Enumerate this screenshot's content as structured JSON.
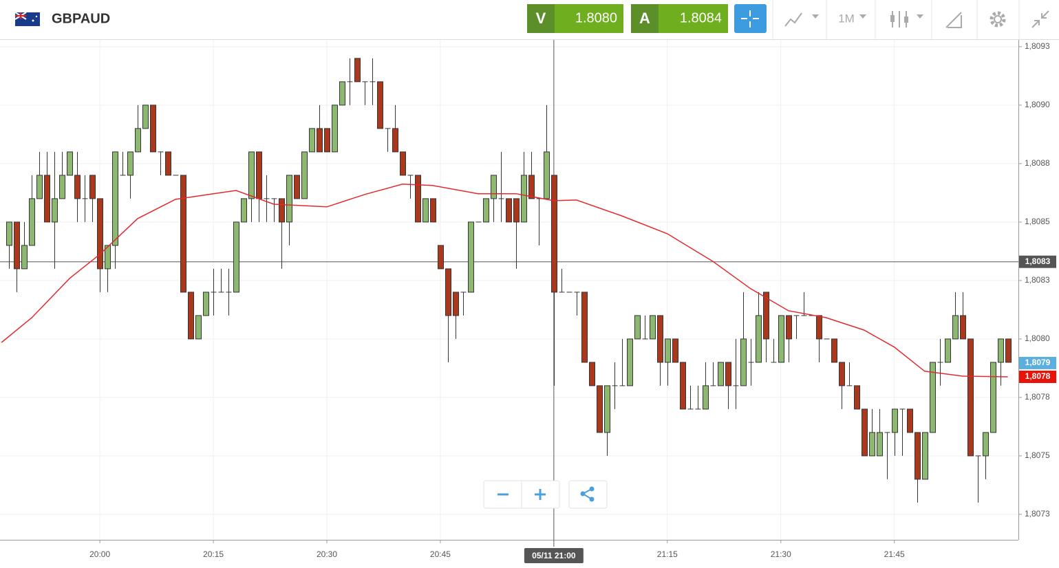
{
  "header": {
    "symbol": "GBPAUD",
    "bid_label": "V",
    "bid": "1.8080",
    "ask_label": "A",
    "ask": "1.8084",
    "timeframe": "1M"
  },
  "chart_data": {
    "type": "candlestick",
    "up_color": "#8cb870",
    "down_color": "#a9381c",
    "xlim": [
      1186.8,
      1321.4
    ],
    "ylim": [
      1.807141,
      1.809279
    ],
    "xticks": [
      {
        "value": 1200,
        "label": "20:00"
      },
      {
        "value": 1215,
        "label": "20:15"
      },
      {
        "value": 1230,
        "label": "20:30"
      },
      {
        "value": 1245,
        "label": "20:45"
      },
      {
        "value": 1275,
        "label": "21:15"
      },
      {
        "value": 1290,
        "label": "21:30"
      },
      {
        "value": 1305,
        "label": "21:45"
      }
    ],
    "yticks": [
      {
        "value": 1.80725,
        "label": "1,8073"
      },
      {
        "value": 1.8075,
        "label": "1,8075"
      },
      {
        "value": 1.80775,
        "label": "1,8078"
      },
      {
        "value": 1.808,
        "label": "1,8080"
      },
      {
        "value": 1.80825,
        "label": "1,8083"
      },
      {
        "value": 1.8085,
        "label": "1,8085"
      },
      {
        "value": 1.80875,
        "label": "1,8088"
      },
      {
        "value": 1.809,
        "label": "1,8090"
      },
      {
        "value": 1.80925,
        "label": "1,8093"
      }
    ],
    "grid": true,
    "x": [
      1188,
      1189,
      1190,
      1191,
      1192,
      1193,
      1194,
      1195,
      1196,
      1197,
      1198,
      1199,
      1200,
      1201,
      1202,
      1203,
      1204,
      1205,
      1206,
      1207,
      1208,
      1209,
      1210,
      1211,
      1212,
      1213,
      1214,
      1215,
      1216,
      1217,
      1218,
      1219,
      1220,
      1221,
      1222,
      1223,
      1224,
      1225,
      1226,
      1227,
      1228,
      1229,
      1230,
      1231,
      1232,
      1233,
      1234,
      1235,
      1236,
      1237,
      1238,
      1239,
      1240,
      1241,
      1242,
      1243,
      1244,
      1245,
      1246,
      1247,
      1248,
      1249,
      1250,
      1251,
      1252,
      1253,
      1254,
      1255,
      1256,
      1257,
      1258,
      1259,
      1260,
      1261,
      1262,
      1263,
      1264,
      1265,
      1266,
      1267,
      1268,
      1269,
      1270,
      1271,
      1272,
      1273,
      1274,
      1275,
      1276,
      1277,
      1278,
      1279,
      1280,
      1281,
      1282,
      1283,
      1284,
      1285,
      1286,
      1287,
      1288,
      1289,
      1290,
      1291,
      1292,
      1293,
      1294,
      1295,
      1296,
      1297,
      1298,
      1299,
      1300,
      1301,
      1302,
      1303,
      1304,
      1305,
      1306,
      1307,
      1308,
      1309,
      1310,
      1311,
      1312,
      1313,
      1314,
      1315,
      1316,
      1317,
      1318,
      1319,
      1320
    ],
    "open": [
      1.8084,
      1.8085,
      1.8083,
      1.8084,
      1.8086,
      1.8087,
      1.8085,
      1.8086,
      1.8087,
      1.8087,
      1.8086,
      1.8087,
      1.8086,
      1.8083,
      1.8084,
      1.8087,
      1.8087,
      1.8088,
      1.8089,
      1.809,
      1.8088,
      1.8088,
      1.8087,
      1.8087,
      1.8082,
      1.808,
      1.8081,
      1.8082,
      1.8082,
      1.8082,
      1.8082,
      1.8085,
      1.8086,
      1.8088,
      1.8086,
      1.8086,
      1.8086,
      1.8085,
      1.8087,
      1.8086,
      1.8088,
      1.8089,
      1.8089,
      1.8088,
      1.809,
      1.8091,
      1.8092,
      1.8091,
      1.8091,
      1.8091,
      1.8089,
      1.8089,
      1.8088,
      1.8087,
      1.8087,
      1.8085,
      1.8086,
      1.8084,
      1.8083,
      1.8082,
      1.8082,
      1.8082,
      1.8085,
      1.8085,
      1.8086,
      1.8086,
      1.8086,
      1.8086,
      1.8085,
      1.8087,
      1.8086,
      1.8086,
      1.8087,
      1.8082,
      1.8082,
      1.8082,
      1.8082,
      1.8079,
      1.8078,
      1.8076,
      1.8078,
      1.8078,
      1.8078,
      1.808,
      1.808,
      1.808,
      1.8081,
      1.8079,
      1.808,
      1.8079,
      1.8077,
      1.8077,
      1.8077,
      1.8078,
      1.8078,
      1.8079,
      1.8078,
      1.8078,
      1.8079,
      1.8079,
      1.8082,
      1.8079,
      1.8079,
      1.8081,
      1.8081,
      1.8081,
      1.8081,
      1.8081,
      1.808,
      1.808,
      1.8079,
      1.8078,
      1.8078,
      1.8077,
      1.8075,
      1.8075,
      1.8076,
      1.8076,
      1.8077,
      1.8077,
      1.8076,
      1.8074,
      1.8076,
      1.8079,
      1.8079,
      1.808,
      1.8081,
      1.808,
      1.8075,
      1.8075,
      1.8076,
      1.8079,
      1.808
    ],
    "high": [
      1.8085,
      1.8085,
      1.8085,
      1.8087,
      1.8088,
      1.8088,
      1.8088,
      1.8088,
      1.8088,
      1.8088,
      1.8087,
      1.8087,
      1.8086,
      1.8084,
      1.8088,
      1.8088,
      1.8088,
      1.809,
      1.809,
      1.809,
      1.8088,
      1.8088,
      1.8087,
      1.8087,
      1.8082,
      1.8081,
      1.8082,
      1.8083,
      1.8083,
      1.8083,
      1.8085,
      1.8086,
      1.8088,
      1.8088,
      1.8087,
      1.8086,
      1.8086,
      1.8087,
      1.8087,
      1.8088,
      1.8089,
      1.809,
      1.8089,
      1.809,
      1.8091,
      1.8092,
      1.8092,
      1.8091,
      1.8092,
      1.8091,
      1.8089,
      1.809,
      1.8088,
      1.8087,
      1.8087,
      1.8086,
      1.8086,
      1.8084,
      1.8083,
      1.8082,
      1.8082,
      1.8085,
      1.8085,
      1.8086,
      1.8087,
      1.8088,
      1.8086,
      1.8086,
      1.8088,
      1.8088,
      1.8086,
      1.809,
      1.8087,
      1.8083,
      1.8082,
      1.8082,
      1.8082,
      1.8079,
      1.8078,
      1.8078,
      1.8079,
      1.808,
      1.808,
      1.8081,
      1.8081,
      1.8081,
      1.8081,
      1.808,
      1.808,
      1.8079,
      1.8078,
      1.8078,
      1.8079,
      1.8079,
      1.8079,
      1.8079,
      1.808,
      1.8082,
      1.808,
      1.8082,
      1.8082,
      1.808,
      1.8081,
      1.8081,
      1.8081,
      1.8082,
      1.8081,
      1.8081,
      1.808,
      1.808,
      1.8079,
      1.8079,
      1.8078,
      1.8077,
      1.8077,
      1.8077,
      1.8076,
      1.8077,
      1.8077,
      1.8077,
      1.8076,
      1.8076,
      1.8079,
      1.808,
      1.808,
      1.8082,
      1.8082,
      1.808,
      1.8075,
      1.8076,
      1.8079,
      1.808,
      1.808
    ],
    "low": [
      1.8083,
      1.8082,
      1.8083,
      1.8084,
      1.8086,
      1.8085,
      1.8083,
      1.8086,
      1.8087,
      1.8085,
      1.8085,
      1.8085,
      1.8082,
      1.8082,
      1.8083,
      1.8087,
      1.8086,
      1.8088,
      1.8089,
      1.8088,
      1.8087,
      1.8087,
      1.8087,
      1.8082,
      1.808,
      1.808,
      1.8081,
      1.8081,
      1.8082,
      1.8081,
      1.8082,
      1.8085,
      1.8085,
      1.8085,
      1.8085,
      1.8085,
      1.8083,
      1.8084,
      1.8086,
      1.8086,
      1.8088,
      1.8088,
      1.8088,
      1.8088,
      1.809,
      1.809,
      1.8091,
      1.809,
      1.809,
      1.8089,
      1.8088,
      1.8088,
      1.8087,
      1.8086,
      1.8085,
      1.8085,
      1.8085,
      1.8083,
      1.8079,
      1.808,
      1.8081,
      1.8082,
      1.8085,
      1.8085,
      1.8085,
      1.8085,
      1.8085,
      1.8083,
      1.8085,
      1.8086,
      1.8084,
      1.8086,
      1.8078,
      1.8082,
      1.8082,
      1.8081,
      1.8079,
      1.8078,
      1.8076,
      1.8075,
      1.8077,
      1.8078,
      1.8078,
      1.808,
      1.808,
      1.808,
      1.8078,
      1.8078,
      1.8079,
      1.8077,
      1.8077,
      1.8077,
      1.8077,
      1.8078,
      1.8078,
      1.8077,
      1.8077,
      1.8078,
      1.8078,
      1.8079,
      1.8079,
      1.8079,
      1.8079,
      1.8079,
      1.808,
      1.8081,
      1.8081,
      1.8079,
      1.808,
      1.8079,
      1.8077,
      1.8078,
      1.8077,
      1.8075,
      1.8075,
      1.8075,
      1.8074,
      1.8075,
      1.8075,
      1.8076,
      1.8073,
      1.8074,
      1.8076,
      1.8078,
      1.8079,
      1.808,
      1.808,
      1.8075,
      1.8073,
      1.8074,
      1.8076,
      1.8078,
      1.8079
    ],
    "close": [
      1.8085,
      1.8083,
      1.8084,
      1.8086,
      1.8087,
      1.8085,
      1.8086,
      1.8087,
      1.8088,
      1.8086,
      1.8086,
      1.8086,
      1.8083,
      1.8084,
      1.8088,
      1.8087,
      1.8088,
      1.8089,
      1.809,
      1.8088,
      1.8088,
      1.8087,
      1.8087,
      1.8082,
      1.808,
      1.8081,
      1.8082,
      1.8082,
      1.8082,
      1.8082,
      1.8085,
      1.8086,
      1.8088,
      1.8086,
      1.8086,
      1.8086,
      1.8085,
      1.8087,
      1.8086,
      1.8088,
      1.8089,
      1.8088,
      1.8088,
      1.809,
      1.8091,
      1.8091,
      1.8091,
      1.8091,
      1.8091,
      1.8089,
      1.8089,
      1.8088,
      1.8087,
      1.8087,
      1.8085,
      1.8086,
      1.8085,
      1.8083,
      1.8081,
      1.8081,
      1.8082,
      1.8085,
      1.8085,
      1.8086,
      1.8087,
      1.8086,
      1.8085,
      1.8085,
      1.8087,
      1.8086,
      1.8086,
      1.8088,
      1.8082,
      1.8082,
      1.8082,
      1.8082,
      1.8079,
      1.8078,
      1.8076,
      1.8078,
      1.8078,
      1.8078,
      1.808,
      1.8081,
      1.808,
      1.8081,
      1.8079,
      1.808,
      1.8079,
      1.8077,
      1.8077,
      1.8077,
      1.8078,
      1.8078,
      1.8079,
      1.8078,
      1.8078,
      1.808,
      1.8079,
      1.8081,
      1.808,
      1.8079,
      1.8081,
      1.808,
      1.8081,
      1.8081,
      1.8081,
      1.808,
      1.808,
      1.8079,
      1.8078,
      1.8078,
      1.8077,
      1.8075,
      1.8076,
      1.8076,
      1.8076,
      1.8077,
      1.8077,
      1.8076,
      1.8074,
      1.8076,
      1.8079,
      1.8079,
      1.808,
      1.8081,
      1.808,
      1.8075,
      1.8075,
      1.8076,
      1.8079,
      1.808,
      1.8079
    ],
    "overlay": {
      "type": "line",
      "color": "#e3292b",
      "x": [
        1187,
        1191,
        1196,
        1200,
        1205,
        1210,
        1215,
        1218,
        1223,
        1230,
        1235,
        1240,
        1244,
        1250,
        1255,
        1260,
        1263,
        1269,
        1275,
        1281,
        1286,
        1291,
        1296,
        1301,
        1305,
        1309,
        1314,
        1320
      ],
      "values": [
        1.807985,
        1.808091,
        1.808259,
        1.808362,
        1.808515,
        1.808597,
        1.808621,
        1.808635,
        1.808576,
        1.808565,
        1.808618,
        1.808662,
        1.808656,
        1.808621,
        1.808621,
        1.808591,
        1.808594,
        1.808526,
        1.80845,
        1.808332,
        1.808215,
        1.808121,
        1.808091,
        1.808038,
        1.807965,
        1.807862,
        1.807841,
        1.807838
      ]
    },
    "crosshair": {
      "x": 1260,
      "x_label": "05/11 21:00",
      "y": 1.80833,
      "y_label": "1,8083",
      "color": "#555555"
    },
    "price_labels": [
      {
        "value": 1.807897,
        "label": "1,8079",
        "color": "#5aafdf"
      },
      {
        "value": 1.807838,
        "label": "1,8078",
        "color": "#e8140c"
      }
    ]
  }
}
